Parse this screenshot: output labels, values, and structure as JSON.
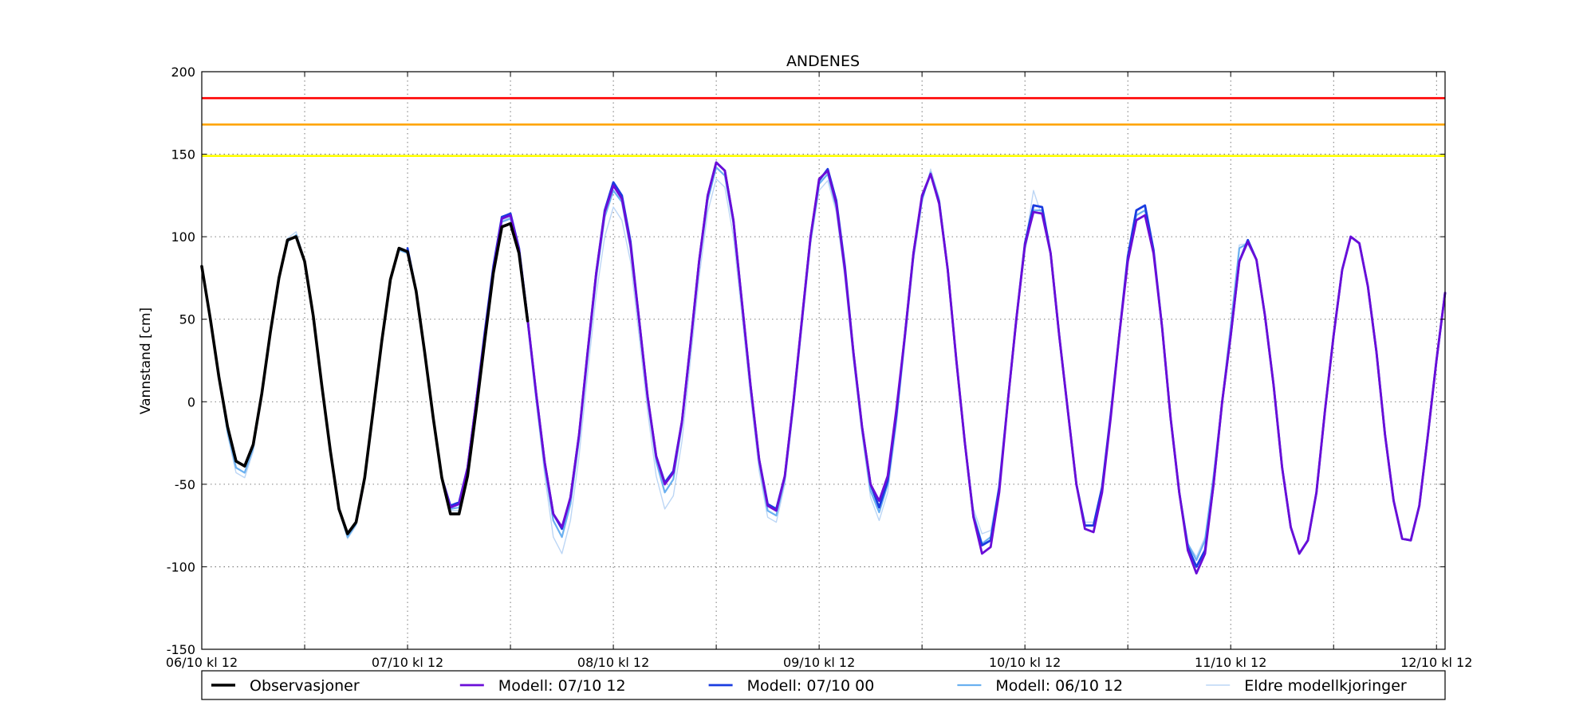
{
  "chart_data": {
    "type": "line",
    "title": "ANDENES",
    "xlabel": "",
    "ylabel": "Vannstand [cm]",
    "ylim": [
      -150,
      200
    ],
    "yticks": [
      -150,
      -100,
      -50,
      0,
      50,
      100,
      150,
      200
    ],
    "xlim_hours": [
      0,
      145
    ],
    "x_unit": "hours from 06/10 kl 12",
    "xtick_labels": [
      {
        "hour": 0,
        "label": "06/10 kl 12"
      },
      {
        "hour": 24,
        "label": "07/10 kl 12"
      },
      {
        "hour": 48,
        "label": "08/10 kl 12"
      },
      {
        "hour": 72,
        "label": "09/10 kl 12"
      },
      {
        "hour": 96,
        "label": "10/10 kl 12"
      },
      {
        "hour": 120,
        "label": "11/10 kl 12"
      },
      {
        "hour": 144,
        "label": "12/10 kl 12"
      }
    ],
    "xticks_hours": [
      0,
      12,
      24,
      36,
      48,
      60,
      72,
      84,
      96,
      108,
      120,
      132,
      144
    ],
    "grid": true,
    "legend_position": "bottom",
    "thresholds": [
      {
        "value": 184,
        "color": "#ff0000",
        "style": "solid"
      },
      {
        "value": 168,
        "color": "#ffa500",
        "style": "solid"
      },
      {
        "value": 149,
        "color": "#ffff00",
        "style": "solid"
      }
    ],
    "series": [
      {
        "name": "Observasjoner",
        "color": "#000000",
        "x": [
          0,
          1,
          2,
          3,
          4,
          5,
          6,
          7,
          8,
          9,
          10,
          11,
          12,
          13,
          14,
          15,
          16,
          17,
          18,
          19,
          20,
          21,
          22,
          23,
          24,
          25,
          26,
          27,
          28,
          29,
          30,
          31,
          32,
          33,
          34,
          35,
          36,
          37,
          38
        ],
        "y": [
          82,
          50,
          15,
          -15,
          -36,
          -39,
          -26,
          5,
          42,
          75,
          98,
          100,
          85,
          52,
          10,
          -30,
          -65,
          -80,
          -73,
          -46,
          -5,
          37,
          74,
          93,
          91,
          67,
          30,
          -10,
          -46,
          -68,
          -68,
          -45,
          -5,
          37,
          78,
          106,
          108,
          90,
          49
        ]
      },
      {
        "name": "Modell: 07/10 12",
        "color": "#6a0dd8",
        "x": [
          0,
          1,
          2,
          3,
          4,
          5,
          6,
          7,
          8,
          9,
          10,
          11,
          12,
          13,
          14,
          15,
          16,
          17,
          18,
          19,
          20,
          21,
          22,
          23,
          24,
          25,
          26,
          27,
          28,
          29,
          30,
          31,
          32,
          33,
          34,
          35,
          36,
          37,
          38,
          39,
          40,
          41,
          42,
          43,
          44,
          45,
          46,
          47,
          48,
          49,
          50,
          51,
          52,
          53,
          54,
          55,
          56,
          57,
          58,
          59,
          60,
          61,
          62,
          63,
          64,
          65,
          66,
          67,
          68,
          69,
          70,
          71,
          72,
          73,
          74,
          75,
          76,
          77,
          78,
          79,
          80,
          81,
          82,
          83,
          84,
          85,
          86,
          87,
          88,
          89,
          90,
          91,
          92,
          93,
          94,
          95,
          96,
          97,
          98,
          99,
          100,
          101,
          102,
          103,
          104,
          105,
          106,
          107,
          108,
          109,
          110,
          111,
          112,
          113,
          114,
          115,
          116,
          117,
          118,
          119,
          120,
          121,
          122,
          123,
          124,
          125,
          126,
          127,
          128,
          129,
          130,
          131,
          132,
          133,
          134,
          135,
          136,
          137,
          138,
          139,
          140,
          141,
          142,
          143,
          144,
          145
        ],
        "y": [
          82,
          50,
          15,
          -15,
          -36,
          -39,
          -26,
          5,
          42,
          75,
          98,
          100,
          85,
          52,
          10,
          -30,
          -65,
          -80,
          -73,
          -46,
          -5,
          37,
          74,
          93,
          91,
          67,
          30,
          -10,
          -46,
          -64,
          -62,
          -40,
          0,
          40,
          80,
          111,
          113,
          92,
          50,
          5,
          -37,
          -68,
          -76,
          -58,
          -20,
          30,
          78,
          115,
          131,
          123,
          95,
          50,
          3,
          -33,
          -50,
          -43,
          -12,
          35,
          85,
          125,
          145,
          140,
          110,
          60,
          10,
          -35,
          -63,
          -66,
          -45,
          0,
          50,
          100,
          135,
          140,
          120,
          80,
          30,
          -15,
          -50,
          -60,
          -45,
          -5,
          40,
          90,
          125,
          138,
          120,
          80,
          25,
          -25,
          -70,
          -92,
          -88,
          -55,
          0,
          50,
          95,
          115,
          114,
          90,
          40,
          -5,
          -50,
          -77,
          -79,
          -55,
          -10,
          40,
          85,
          110,
          113,
          90,
          45,
          -10,
          -55,
          -90,
          -104,
          -92,
          -50,
          0,
          40,
          85,
          97,
          86,
          52,
          10,
          -40,
          -76,
          -92,
          -84,
          -55,
          -5,
          40,
          80,
          100,
          96,
          70,
          30,
          -20,
          -60,
          -83,
          -84,
          -63,
          -20,
          25,
          66
        ]
      },
      {
        "name": "Modell: 07/10 00",
        "color": "#1a3ce0",
        "x": [
          24,
          25,
          26,
          27,
          28,
          29,
          30,
          31,
          32,
          33,
          34,
          35,
          36,
          37,
          38,
          39,
          40,
          41,
          42,
          43,
          44,
          45,
          46,
          47,
          48,
          49,
          50,
          51,
          52,
          53,
          54,
          55,
          56,
          57,
          58,
          59,
          60,
          61,
          62,
          63,
          64,
          65,
          66,
          67,
          68,
          69,
          70,
          71,
          72,
          73,
          74,
          75,
          76,
          77,
          78,
          79,
          80,
          81,
          82,
          83,
          84,
          85,
          86,
          87,
          88,
          89,
          90,
          91,
          92,
          93,
          94,
          95,
          96,
          97,
          98,
          99,
          100,
          101,
          102,
          103,
          104,
          105,
          106,
          107,
          108,
          109,
          110,
          111,
          112,
          113,
          114,
          115,
          116,
          117,
          118,
          119,
          120,
          121,
          122,
          123,
          124,
          125,
          126,
          127,
          128,
          129,
          130,
          131,
          132,
          133,
          134,
          135,
          136,
          137,
          138,
          139,
          140,
          141,
          142,
          143,
          144,
          145
        ],
        "y": [
          93,
          67,
          30,
          -10,
          -46,
          -63,
          -61,
          -40,
          0,
          42,
          82,
          112,
          114,
          93,
          50,
          5,
          -37,
          -68,
          -77,
          -58,
          -20,
          30,
          78,
          116,
          133,
          125,
          97,
          50,
          3,
          -33,
          -49,
          -42,
          -12,
          35,
          85,
          125,
          145,
          140,
          110,
          60,
          10,
          -35,
          -62,
          -65,
          -45,
          0,
          50,
          100,
          134,
          141,
          122,
          82,
          30,
          -15,
          -50,
          -64,
          -48,
          -8,
          40,
          90,
          124,
          138,
          121,
          80,
          25,
          -25,
          -70,
          -87,
          -84,
          -52,
          0,
          50,
          96,
          119,
          118,
          90,
          40,
          -5,
          -50,
          -75,
          -75,
          -52,
          -8,
          40,
          88,
          116,
          119,
          92,
          45,
          -10,
          -55,
          -88,
          -100,
          -90,
          -50,
          0,
          40,
          85,
          98,
          86,
          52,
          10,
          -40,
          -76,
          -92,
          -84,
          -55,
          -5,
          40,
          80,
          100,
          96,
          70,
          30,
          -20,
          -60,
          -83,
          -84,
          -63,
          -20,
          25,
          66
        ]
      },
      {
        "name": "Modell: 06/10 12",
        "color": "#6ab0f0",
        "x": [
          0,
          1,
          2,
          3,
          4,
          5,
          6,
          7,
          8,
          9,
          10,
          11,
          12,
          13,
          14,
          15,
          16,
          17,
          18,
          19,
          20,
          21,
          22,
          23,
          24,
          25,
          26,
          27,
          28,
          29,
          30,
          31,
          32,
          33,
          34,
          35,
          36,
          37,
          38,
          39,
          40,
          41,
          42,
          43,
          44,
          45,
          46,
          47,
          48,
          49,
          50,
          51,
          52,
          53,
          54,
          55,
          56,
          57,
          58,
          59,
          60,
          61,
          62,
          63,
          64,
          65,
          66,
          67,
          68,
          69,
          70,
          71,
          72,
          73,
          74,
          75,
          76,
          77,
          78,
          79,
          80,
          81,
          82,
          83,
          84,
          85,
          86,
          87,
          88,
          89,
          90,
          91,
          92,
          93,
          94,
          95,
          96,
          97,
          98,
          99,
          100,
          101,
          102,
          103,
          104,
          105,
          106,
          107,
          108,
          109,
          110,
          111,
          112,
          113,
          114,
          115,
          116,
          117,
          118,
          119,
          120,
          121,
          122,
          123,
          124,
          125,
          126,
          127,
          128,
          129,
          130,
          131,
          132,
          133,
          134,
          135,
          136,
          137,
          138,
          139,
          140,
          141,
          142,
          143,
          144,
          145
        ],
        "y": [
          82,
          50,
          15,
          -18,
          -40,
          -43,
          -28,
          5,
          42,
          75,
          97,
          101,
          85,
          52,
          10,
          -30,
          -65,
          -82,
          -74,
          -46,
          -5,
          37,
          74,
          92,
          90,
          67,
          30,
          -10,
          -46,
          -65,
          -64,
          -42,
          -3,
          38,
          78,
          109,
          111,
          90,
          48,
          2,
          -40,
          -72,
          -82,
          -62,
          -23,
          27,
          75,
          112,
          128,
          121,
          93,
          48,
          1,
          -36,
          -55,
          -47,
          -14,
          33,
          83,
          122,
          142,
          137,
          108,
          58,
          8,
          -37,
          -66,
          -69,
          -47,
          -2,
          48,
          98,
          132,
          138,
          118,
          78,
          28,
          -17,
          -54,
          -67,
          -50,
          -10,
          38,
          88,
          123,
          139,
          122,
          80,
          25,
          -25,
          -68,
          -86,
          -82,
          -52,
          0,
          50,
          93,
          116,
          116,
          90,
          40,
          -5,
          -50,
          -75,
          -75,
          -52,
          -8,
          40,
          86,
          113,
          116,
          92,
          45,
          -10,
          -55,
          -86,
          -96,
          -84,
          -45,
          0,
          45,
          93,
          96,
          86,
          52,
          10,
          -40,
          -76,
          -92,
          -84,
          -55,
          -5,
          40,
          80,
          100,
          96,
          70,
          30,
          -20,
          -60,
          -83,
          -84,
          -63,
          -20,
          25,
          66
        ]
      },
      {
        "name": "Eldre modellkjoringer",
        "color": "#bcd6f5",
        "x": [
          0,
          1,
          2,
          3,
          4,
          5,
          6,
          7,
          8,
          9,
          10,
          11,
          12,
          13,
          14,
          15,
          16,
          17,
          18,
          19,
          20,
          21,
          22,
          23,
          24,
          25,
          26,
          27,
          28,
          29,
          30,
          31,
          32,
          33,
          34,
          35,
          36,
          37,
          38,
          39,
          40,
          41,
          42,
          43,
          44,
          45,
          46,
          47,
          48,
          49,
          50,
          51,
          52,
          53,
          54,
          55,
          56,
          57,
          58,
          59,
          60,
          61,
          62,
          63,
          64,
          65,
          66,
          67,
          68,
          69,
          70,
          71,
          72,
          73,
          74,
          75,
          76,
          77,
          78,
          79,
          80,
          81,
          82,
          83,
          84,
          85,
          86,
          87,
          88,
          89,
          90,
          91,
          92,
          93,
          94,
          95,
          96,
          97,
          98,
          99,
          100,
          101,
          102,
          103,
          104,
          105,
          106,
          107,
          108,
          109,
          110,
          111,
          112,
          113,
          114,
          115,
          116,
          117,
          118,
          119,
          120,
          121,
          122,
          123,
          124,
          125,
          126,
          127,
          128,
          129,
          130,
          131,
          132,
          133,
          134,
          135,
          136,
          137,
          138,
          139,
          140,
          141,
          142,
          143,
          144,
          145
        ],
        "y": [
          82,
          50,
          15,
          -20,
          -43,
          -46,
          -30,
          4,
          42,
          76,
          99,
          103,
          86,
          52,
          10,
          -30,
          -66,
          -83,
          -75,
          -47,
          -5,
          37,
          75,
          93,
          91,
          67,
          30,
          -10,
          -46,
          -66,
          -66,
          -44,
          -5,
          36,
          78,
          110,
          112,
          90,
          48,
          0,
          -45,
          -82,
          -92,
          -72,
          -33,
          17,
          65,
          100,
          118,
          110,
          85,
          40,
          -6,
          -45,
          -65,
          -57,
          -24,
          25,
          75,
          115,
          135,
          130,
          100,
          52,
          3,
          -42,
          -70,
          -73,
          -50,
          -5,
          45,
          95,
          128,
          134,
          115,
          75,
          25,
          -20,
          -58,
          -72,
          -55,
          -15,
          35,
          85,
          120,
          141,
          124,
          82,
          25,
          -25,
          -65,
          -80,
          -78,
          -50,
          0,
          52,
          95,
          128,
          112,
          88,
          40,
          -5,
          -50,
          -73,
          -73,
          -50,
          -8,
          42,
          86,
          113,
          116,
          92,
          45,
          -10,
          -55,
          -86,
          -94,
          -82,
          -44,
          2,
          48,
          95,
          96,
          86,
          52,
          10,
          -40,
          -76,
          -92,
          -84,
          -55,
          -5,
          40,
          80,
          100,
          96,
          70,
          30,
          -20,
          -60,
          -83,
          -84,
          -63,
          -20,
          25,
          66
        ]
      }
    ]
  }
}
